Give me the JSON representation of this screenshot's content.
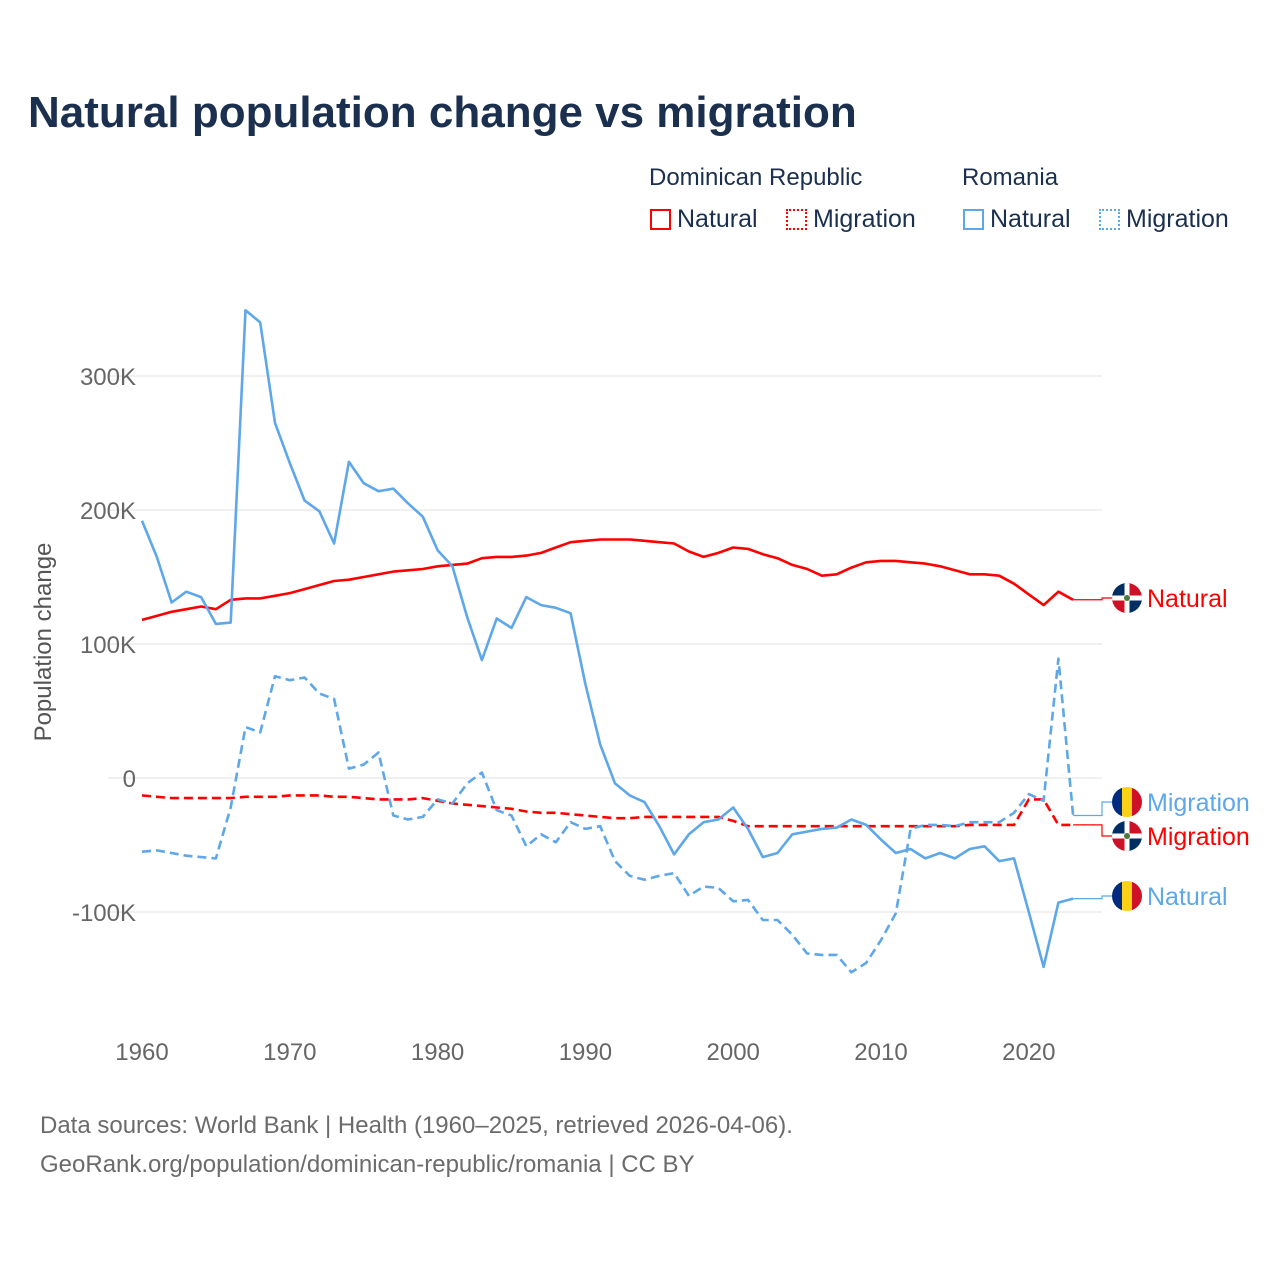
{
  "chart_data": {
    "type": "line",
    "title": "Natural population change vs migration",
    "xlabel": "",
    "ylabel": "Population change",
    "xlim": [
      1960,
      2025
    ],
    "ylim": [
      -170000,
      360000
    ],
    "grid": true,
    "legend_placement": "top-right",
    "x_ticks": [
      1960,
      1970,
      1980,
      1990,
      2000,
      2010,
      2020
    ],
    "x_tick_labels": [
      "1960",
      "1970",
      "1980",
      "1990",
      "2000",
      "2010",
      "2020"
    ],
    "y_ticks": [
      -100000,
      0,
      100000,
      200000,
      300000
    ],
    "y_tick_labels": [
      "-100K",
      "0",
      "100K",
      "200K",
      "300K"
    ],
    "legend": {
      "groups": [
        {
          "name": "Dominican Republic",
          "items": [
            "Natural",
            "Migration"
          ]
        },
        {
          "name": "Romania",
          "items": [
            "Natural",
            "Migration"
          ]
        }
      ]
    },
    "x_start": 1960,
    "series": [
      {
        "name": "Dominican Republic Natural",
        "country": "Dominican Republic",
        "kind": "Natural",
        "color": "#ff0000",
        "dash": false,
        "end_label": "Natural",
        "flag": "dominican-republic",
        "values": [
          118,
          121,
          124,
          126,
          128,
          126,
          133,
          134,
          134,
          136,
          138,
          141,
          144,
          147,
          148,
          150,
          152,
          154,
          155,
          156,
          158,
          159,
          160,
          164,
          165,
          165,
          166,
          168,
          172,
          176,
          177,
          178,
          178,
          178,
          177,
          176,
          175,
          169,
          165,
          168,
          172,
          171,
          167,
          164,
          159,
          156,
          151,
          152,
          157,
          161,
          162,
          162,
          161,
          160,
          158,
          155,
          152,
          152,
          151,
          145,
          137,
          129,
          139,
          133
        ]
      },
      {
        "name": "Dominican Republic Migration",
        "country": "Dominican Republic",
        "kind": "Migration",
        "color": "#ff0000",
        "dash": true,
        "end_label": "Migration",
        "flag": "dominican-republic",
        "values": [
          -13,
          -14,
          -15,
          -15,
          -15,
          -15,
          -15,
          -14,
          -14,
          -14,
          -13,
          -13,
          -13,
          -14,
          -14,
          -15,
          -16,
          -16,
          -16,
          -15,
          -17,
          -19,
          -20,
          -21,
          -22,
          -23,
          -25,
          -26,
          -26,
          -27,
          -28,
          -29,
          -30,
          -30,
          -29,
          -29,
          -29,
          -29,
          -29,
          -29,
          -32,
          -36,
          -36,
          -36,
          -36,
          -36,
          -36,
          -36,
          -36,
          -36,
          -36,
          -36,
          -36,
          -36,
          -36,
          -36,
          -35,
          -35,
          -35,
          -35,
          -16,
          -16,
          -35,
          -35
        ]
      },
      {
        "name": "Romania Natural",
        "country": "Romania",
        "kind": "Natural",
        "color": "#5ea7e8",
        "dash": false,
        "end_label": "Natural",
        "flag": "romania",
        "values": [
          192,
          165,
          131,
          139,
          135,
          115,
          116,
          349,
          340,
          265,
          235,
          207,
          199,
          175,
          236,
          220,
          214,
          216,
          205,
          195,
          170,
          158,
          120,
          88,
          119,
          112,
          135,
          129,
          127,
          123,
          70,
          25,
          -4,
          -13,
          -18,
          -36,
          -57,
          -42,
          -33,
          -31,
          -22,
          -38,
          -59,
          -56,
          -42,
          -40,
          -38,
          -37,
          -31,
          -35,
          -46,
          -56,
          -53,
          -60,
          -56,
          -60,
          -53,
          -51,
          -62,
          -60,
          -100,
          -141,
          -93,
          -90
        ]
      },
      {
        "name": "Romania Migration",
        "country": "Romania",
        "kind": "Migration",
        "color": "#5ea7e8",
        "dash": true,
        "end_label": "Migration",
        "flag": "romania",
        "values": [
          -55,
          -54,
          -56,
          -58,
          -59,
          -60,
          -22,
          38,
          34,
          76,
          73,
          75,
          63,
          59,
          7,
          10,
          19,
          -28,
          -31,
          -29,
          -16,
          -19,
          -4,
          4,
          -24,
          -28,
          -51,
          -42,
          -48,
          -33,
          -38,
          -36,
          -62,
          -73,
          -76,
          -73,
          -71,
          -88,
          -81,
          -82,
          -92,
          -91,
          -106,
          -106,
          -117,
          -131,
          -132,
          -132,
          -145,
          -138,
          -121,
          -101,
          -38,
          -35,
          -35,
          -36,
          -33,
          -33,
          -33,
          -26,
          -12,
          -17,
          89,
          -28
        ]
      }
    ],
    "value_unit": "thousands"
  },
  "footer": {
    "line1": "Data sources: World Bank | Health (1960–2025, retrieved 2026-04-06).",
    "line2": "GeoRank.org/population/dominican-republic/romania | CC BY"
  },
  "colors": {
    "dr": "#ff0000",
    "ro": "#5ea7e8",
    "title": "#1b2f4e",
    "grid": "#e6e6e6"
  }
}
